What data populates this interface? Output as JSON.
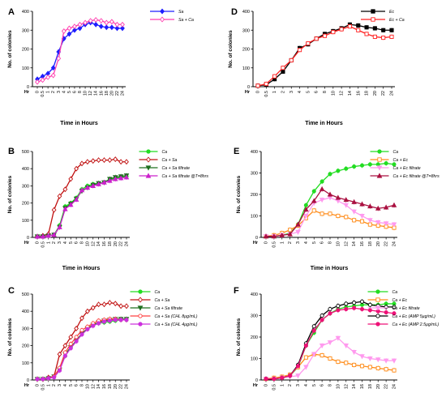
{
  "figure": {
    "panels": [
      {
        "letter": "A",
        "chart_data": {
          "type": "line",
          "x_label_prefix": "Hr",
          "x": [
            "0",
            "0.5",
            "1",
            "2",
            "3",
            "4",
            "5",
            "6",
            "8",
            "10",
            "12",
            "14",
            "16",
            "18",
            "20",
            "22",
            "24"
          ],
          "ylabel": "No. of colonies",
          "xlabel": "Time in Hours",
          "ylim": [
            0,
            400
          ],
          "yticks": [
            0,
            100,
            200,
            300,
            400
          ],
          "legend_position": "top-right",
          "series": [
            {
              "name": "Sa",
              "color": "#1f1fff",
              "marker": "diamond",
              "fill": true,
              "values": [
                40,
                55,
                70,
                100,
                185,
                255,
                280,
                300,
                310,
                330,
                340,
                330,
                320,
                315,
                315,
                310,
                310
              ]
            },
            {
              "name": "Sa + Ca",
              "color": "#ff3fb0",
              "marker": "diamond",
              "fill": false,
              "values": [
                25,
                35,
                50,
                60,
                150,
                295,
                310,
                320,
                330,
                340,
                350,
                355,
                350,
                340,
                345,
                330,
                330
              ]
            }
          ]
        }
      },
      {
        "letter": "D",
        "chart_data": {
          "type": "line",
          "x_label_prefix": "Hr",
          "x": [
            "0",
            "0.5",
            "1",
            "2",
            "3",
            "4",
            "5",
            "6",
            "8",
            "10",
            "12",
            "14",
            "16",
            "18",
            "20",
            "22",
            "24"
          ],
          "ylabel": "No. of colonies",
          "xlabel": "Time in Hours",
          "ylim": [
            0,
            400
          ],
          "yticks": [
            0,
            100,
            200,
            300,
            400
          ],
          "legend_position": "top-right",
          "series": [
            {
              "name": "Ec",
              "color": "#000000",
              "marker": "square",
              "fill": true,
              "values": [
                5,
                10,
                40,
                80,
                140,
                205,
                225,
                255,
                280,
                295,
                310,
                330,
                325,
                315,
                310,
                300,
                300
              ]
            },
            {
              "name": "Ec + Ca",
              "color": "#ff2020",
              "marker": "square",
              "fill": false,
              "values": [
                5,
                15,
                55,
                100,
                140,
                195,
                230,
                255,
                270,
                290,
                305,
                320,
                300,
                280,
                265,
                260,
                265
              ]
            }
          ]
        }
      },
      {
        "letter": "B",
        "chart_data": {
          "type": "line",
          "x_label_prefix": "Hr",
          "x": [
            "0",
            "0.5",
            "1",
            "2",
            "3",
            "4",
            "5",
            "6",
            "8",
            "10",
            "12",
            "14",
            "16",
            "18",
            "20",
            "22",
            "24"
          ],
          "ylabel": "No. of colonies",
          "xlabel": "Time in Hours",
          "ylim": [
            0,
            500
          ],
          "yticks": [
            0,
            100,
            200,
            300,
            400,
            500
          ],
          "legend_position": "right",
          "series": [
            {
              "name": "Ca",
              "color": "#22dd22",
              "marker": "circle",
              "fill": true,
              "values": [
                5,
                5,
                10,
                15,
                70,
                180,
                200,
                230,
                280,
                300,
                310,
                315,
                320,
                335,
                345,
                350,
                355
              ]
            },
            {
              "name": "Ca + Sa",
              "color": "#c01010",
              "marker": "diamond",
              "fill": false,
              "values": [
                5,
                10,
                20,
                160,
                240,
                280,
                340,
                400,
                430,
                440,
                445,
                450,
                450,
                450,
                455,
                440,
                440
              ]
            },
            {
              "name": "Ca + Sa filtrate",
              "color": "#1f6f1f",
              "marker": "triangle-down",
              "fill": true,
              "values": [
                5,
                5,
                10,
                15,
                60,
                170,
                195,
                225,
                270,
                290,
                305,
                315,
                320,
                340,
                350,
                355,
                360
              ]
            },
            {
              "name": "Ca + Sa filtrate @T=8hrs",
              "color": "#cc20cc",
              "marker": "triangle",
              "fill": true,
              "values": [
                5,
                5,
                10,
                15,
                60,
                165,
                190,
                220,
                275,
                290,
                300,
                310,
                320,
                330,
                340,
                345,
                350
              ]
            }
          ]
        }
      },
      {
        "letter": "E",
        "chart_data": {
          "type": "line",
          "x_label_prefix": "Hr",
          "x": [
            "0",
            "0.5",
            "1",
            "2",
            "3",
            "4",
            "5",
            "6",
            "8",
            "10",
            "12",
            "14",
            "16",
            "18",
            "20",
            "22",
            "24"
          ],
          "ylabel": "No. of colonies",
          "xlabel": "Time in Hours",
          "ylim": [
            0,
            400
          ],
          "yticks": [
            0,
            100,
            200,
            300,
            400
          ],
          "legend_position": "right",
          "series": [
            {
              "name": "Ca",
              "color": "#22dd22",
              "marker": "circle",
              "fill": true,
              "values": [
                5,
                5,
                10,
                20,
                60,
                150,
                215,
                260,
                295,
                310,
                320,
                330,
                335,
                340,
                340,
                345,
                340
              ]
            },
            {
              "name": "Ca + Ec",
              "color": "#ff8c1a",
              "marker": "square",
              "fill": false,
              "values": [
                5,
                10,
                20,
                35,
                55,
                90,
                125,
                110,
                110,
                100,
                95,
                80,
                75,
                60,
                55,
                50,
                45
              ]
            },
            {
              "name": "Ca + Ec filtrate",
              "color": "#ff99ee",
              "marker": "triangle-down",
              "fill": true,
              "values": [
                5,
                5,
                10,
                15,
                25,
                100,
                160,
                175,
                185,
                170,
                150,
                120,
                100,
                80,
                70,
                65,
                60
              ]
            },
            {
              "name": "Ca + Ec filtrate @T=8hrs",
              "color": "#aa1040",
              "marker": "triangle",
              "fill": true,
              "values": [
                5,
                5,
                10,
                15,
                60,
                130,
                170,
                225,
                200,
                185,
                175,
                165,
                155,
                145,
                135,
                140,
                150
              ]
            }
          ]
        }
      },
      {
        "letter": "C",
        "chart_data": {
          "type": "line",
          "x_label_prefix": "Hr",
          "x": [
            "0",
            "0.5",
            "1",
            "2",
            "3",
            "4",
            "5",
            "6",
            "8",
            "10",
            "12",
            "14",
            "16",
            "18",
            "20",
            "22",
            "24"
          ],
          "ylabel": "No. of colonies",
          "xlabel": "",
          "ylim": [
            0,
            500
          ],
          "yticks": [
            0,
            100,
            200,
            300,
            400,
            500
          ],
          "legend_position": "right",
          "series": [
            {
              "name": "Ca",
              "color": "#22dd22",
              "marker": "circle",
              "fill": true,
              "values": [
                5,
                5,
                10,
                20,
                60,
                140,
                190,
                230,
                270,
                300,
                320,
                330,
                335,
                340,
                345,
                350,
                350
              ]
            },
            {
              "name": "Ca + Sa",
              "color": "#c01010",
              "marker": "diamond",
              "fill": false,
              "values": [
                5,
                5,
                15,
                20,
                150,
                200,
                250,
                300,
                360,
                400,
                420,
                440,
                440,
                450,
                445,
                430,
                430
              ]
            },
            {
              "name": "Ca + Sa filtrate",
              "color": "#1f6f1f",
              "marker": "triangle-down",
              "fill": true,
              "values": [
                5,
                5,
                10,
                20,
                60,
                150,
                190,
                230,
                270,
                300,
                320,
                335,
                345,
                350,
                355,
                355,
                355
              ]
            },
            {
              "name": "Ca + Sa (CHL 8µg/mL)",
              "color": "#ff4040",
              "marker": "circle",
              "fill": false,
              "values": [
                5,
                5,
                10,
                20,
                70,
                160,
                210,
                250,
                290,
                310,
                330,
                345,
                350,
                355,
                355,
                350,
                350
              ]
            },
            {
              "name": "Ca + Sa (CHL 4µg/mL)",
              "color": "#cc30dd",
              "marker": "circle",
              "fill": true,
              "values": [
                5,
                5,
                10,
                15,
                55,
                140,
                185,
                225,
                265,
                295,
                315,
                330,
                340,
                345,
                350,
                350,
                350
              ]
            }
          ]
        }
      },
      {
        "letter": "F",
        "chart_data": {
          "type": "line",
          "x_label_prefix": "Hr",
          "x": [
            "0",
            "0.5",
            "1",
            "2",
            "3",
            "4",
            "5",
            "6",
            "8",
            "10",
            "12",
            "14",
            "16",
            "18",
            "20",
            "22",
            "24"
          ],
          "ylabel": "No. of colonies",
          "xlabel": "",
          "ylim": [
            0,
            400
          ],
          "yticks": [
            0,
            100,
            200,
            300,
            400
          ],
          "legend_position": "right",
          "series": [
            {
              "name": "Ca",
              "color": "#22dd22",
              "marker": "circle",
              "fill": true,
              "values": [
                5,
                5,
                10,
                20,
                60,
                160,
                220,
                280,
                310,
                330,
                340,
                345,
                350,
                350,
                350,
                355,
                355
              ]
            },
            {
              "name": "Ca + Ec",
              "color": "#ff8c1a",
              "marker": "square",
              "fill": false,
              "values": [
                5,
                10,
                15,
                25,
                60,
                105,
                120,
                115,
                100,
                85,
                80,
                70,
                65,
                60,
                55,
                50,
                45
              ]
            },
            {
              "name": "Ca + Ec filtrate",
              "color": "#ff99ee",
              "marker": "triangle-down",
              "fill": true,
              "values": [
                5,
                5,
                10,
                15,
                20,
                60,
                120,
                160,
                175,
                195,
                160,
                130,
                110,
                100,
                95,
                90,
                90
              ]
            },
            {
              "name": "Ca + Ec (AMP 5µg/mL)",
              "color": "#000000",
              "marker": "circle",
              "fill": false,
              "values": [
                5,
                5,
                10,
                20,
                70,
                170,
                250,
                300,
                330,
                345,
                355,
                360,
                365,
                350,
                345,
                340,
                340
              ]
            },
            {
              "name": "Ca + Ec (AMP 2.5µg/mL)",
              "color": "#ee1177",
              "marker": "circle",
              "fill": true,
              "values": [
                5,
                5,
                10,
                20,
                65,
                160,
                230,
                280,
                310,
                325,
                330,
                335,
                330,
                325,
                320,
                315,
                310
              ]
            }
          ]
        }
      }
    ]
  }
}
